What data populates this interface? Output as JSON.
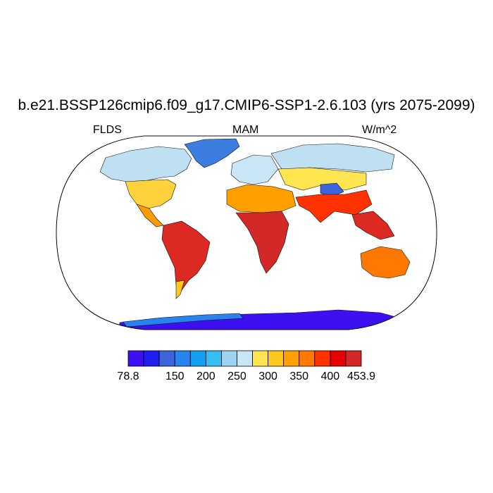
{
  "title": "b.e21.BSSP126cmip6.f09_g17.CMIP6-SSP1-2.6.103 (yrs 2075-2099)",
  "variable": "FLDS",
  "season": "MAM",
  "units": "W/m^2",
  "colorbar": {
    "colors": [
      "#3c10f0",
      "#1e1ef0",
      "#3c64dc",
      "#2882f0",
      "#14a0f0",
      "#36bef0",
      "#9ed2f0",
      "#c8e6f5",
      "#ffe650",
      "#ffc81e",
      "#ffa000",
      "#ff7800",
      "#ff3200",
      "#e60000",
      "#d22828"
    ],
    "tick_labels": [
      "78.8",
      "150",
      "200",
      "250",
      "300",
      "350",
      "400",
      "453.9"
    ]
  }
}
